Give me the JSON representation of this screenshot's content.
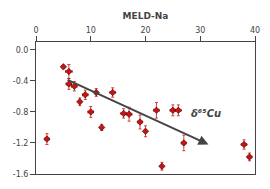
{
  "chart_data": {
    "type": "scatter",
    "x_label": "MELD-Na",
    "x": [
      2,
      5,
      6,
      6,
      7,
      8,
      9,
      10,
      11,
      12,
      14,
      16,
      17,
      19,
      20,
      22,
      23,
      25,
      26,
      27,
      38,
      39
    ],
    "values": [
      -1.15,
      -0.22,
      -0.28,
      -0.44,
      -0.47,
      -0.67,
      -0.58,
      -0.8,
      -0.55,
      -1.0,
      -0.55,
      -0.82,
      -0.83,
      -0.93,
      -1.05,
      -0.78,
      -1.5,
      -0.78,
      -0.78,
      -1.2,
      -1.22,
      -1.38
    ],
    "xerr": [
      0.4,
      0.0,
      0.6,
      0.5,
      0.5,
      0.0,
      0.5,
      0.5,
      0.0,
      0.0,
      0.5,
      0.5,
      0.5,
      0.4,
      0.0,
      0.5,
      0.0,
      0.5,
      0.5,
      0.4,
      0.5,
      0.4
    ],
    "yerr": [
      0.07,
      0.0,
      0.09,
      0.07,
      0.06,
      0.05,
      0.06,
      0.07,
      0.05,
      0.04,
      0.06,
      0.06,
      0.09,
      0.09,
      0.07,
      0.1,
      0.05,
      0.07,
      0.07,
      0.1,
      0.06,
      0.05
    ],
    "color": "#cc1111",
    "marker": "diamond",
    "trend": {
      "x": [
        5.5,
        31.5
      ],
      "y": [
        -0.38,
        -1.22
      ]
    },
    "annotations": [
      "δ⁶⁵Cu"
    ],
    "xlim": [
      0,
      40
    ],
    "xticks": [
      0,
      10,
      20,
      30,
      40
    ],
    "ylim": [
      -1.6,
      0.1
    ],
    "yticks": [
      {
        "value": 0.0,
        "label": "0.0"
      },
      -0.4,
      -0.8,
      -1.2,
      -1.6
    ],
    "grid": false
  }
}
